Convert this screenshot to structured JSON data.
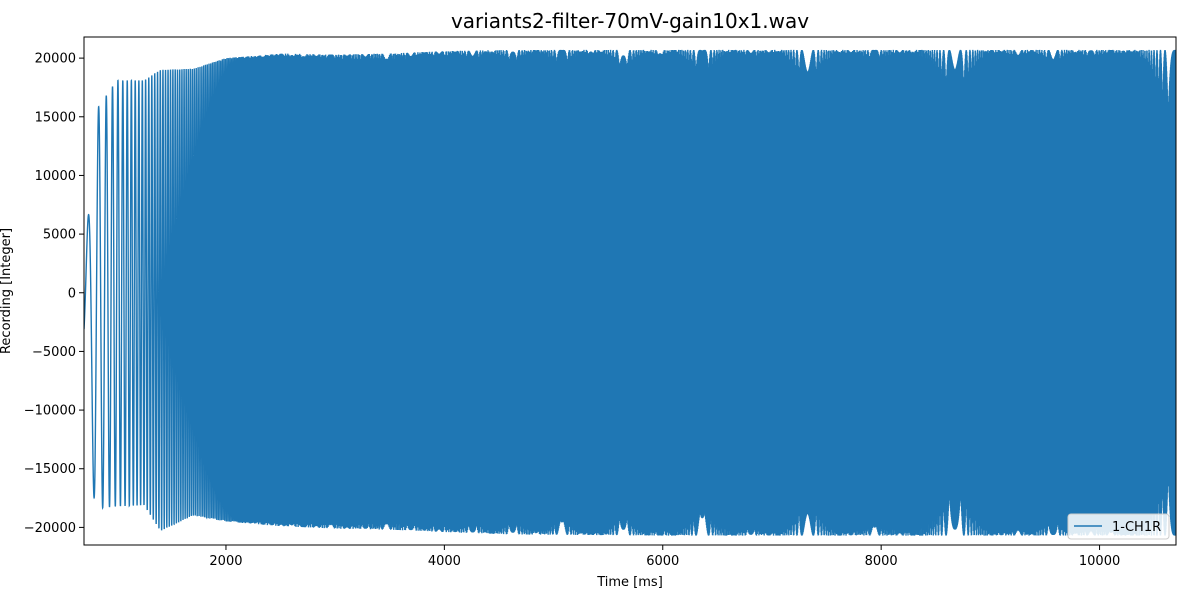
{
  "chart_data": {
    "type": "line",
    "title": "variants2-filter-70mV-gain10x1.wav",
    "xlabel": "Time [ms]",
    "ylabel": "Recording [Integer]",
    "xlim": [
      700,
      10700
    ],
    "ylim": [
      -21500,
      21800
    ],
    "xticks": [
      2000,
      4000,
      6000,
      8000,
      10000
    ],
    "yticks": [
      -20000,
      -15000,
      -10000,
      -5000,
      0,
      5000,
      10000,
      15000,
      20000
    ],
    "grid": false,
    "legend": {
      "position": "bottom-right",
      "entries": [
        "1-CH1R"
      ]
    },
    "series": [
      {
        "name": "1-CH1R",
        "color": "#1f77b4",
        "description": "chirp-like oscillation whose frequency rises with time; amplitude saturates near +/-20500 after ~4000 ms",
        "envelope": {
          "t": [
            700,
            800,
            1000,
            1250,
            1400,
            1700,
            2000,
            2500,
            3000,
            3500,
            4000,
            4600,
            6000,
            8000,
            10700
          ],
          "max": [
            1000,
            15400,
            18100,
            18100,
            19000,
            19100,
            20000,
            20400,
            20300,
            20400,
            20600,
            20700,
            20700,
            20700,
            20700
          ],
          "min": [
            -7200,
            -18400,
            -18200,
            -18100,
            -20300,
            -19000,
            -19500,
            -19900,
            -20100,
            -20200,
            -20400,
            -20600,
            -20700,
            -20700,
            -20700
          ]
        },
        "chirp": {
          "start_freq_per_sec": 6,
          "end_freq_per_sec": 500
        }
      }
    ]
  }
}
